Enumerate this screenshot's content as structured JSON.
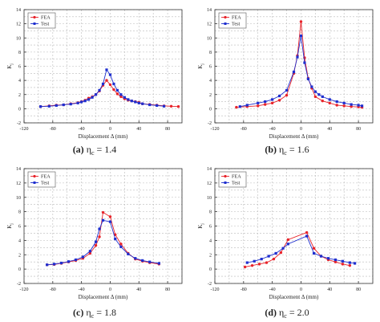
{
  "figure": {
    "panels": [
      {
        "caption_letter": "(a)",
        "caption_text": "η",
        "caption_sub": "c",
        "caption_value": "= 1.4"
      },
      {
        "caption_letter": "(b)",
        "caption_text": "η",
        "caption_sub": "c",
        "caption_value": "= 1.6"
      },
      {
        "caption_letter": "(c)",
        "caption_text": "η",
        "caption_sub": "c",
        "caption_value": "= 1.8"
      },
      {
        "caption_letter": "(d)",
        "caption_text": "η",
        "caption_sub": "c",
        "caption_value": "= 2.0"
      }
    ]
  },
  "style": {
    "fea_color": "#e8232a",
    "test_color": "#1f2fcf",
    "grid_color": "#bbbbbb"
  },
  "chart_data": [
    {
      "type": "line",
      "xlabel": "Displacement Δ (mm)",
      "ylabel": "K",
      "xlim": [
        -120,
        100
      ],
      "ylim": [
        -2,
        14
      ],
      "xticks": [
        -120,
        -80,
        -40,
        0,
        40,
        80
      ],
      "yticks": [
        -2,
        0,
        2,
        4,
        6,
        8,
        10,
        12,
        14
      ],
      "grid": true,
      "legend_position": "top-left",
      "series": [
        {
          "name": "FEA",
          "marker": "circle",
          "x": [
            -97,
            -85,
            -75,
            -65,
            -55,
            -45,
            -40,
            -35,
            -30,
            -25,
            -20,
            -15,
            -10,
            -5,
            0,
            5,
            10,
            15,
            20,
            25,
            30,
            35,
            40,
            45,
            55,
            65,
            75,
            85,
            95
          ],
          "y": [
            0.3,
            0.4,
            0.5,
            0.55,
            0.7,
            0.85,
            1.0,
            1.2,
            1.5,
            1.7,
            2.0,
            2.5,
            3.3,
            4.0,
            3.4,
            2.7,
            2.1,
            1.7,
            1.4,
            1.2,
            1.1,
            1.0,
            0.9,
            0.7,
            0.6,
            0.5,
            0.4,
            0.35,
            0.3
          ]
        },
        {
          "name": "Test",
          "marker": "square",
          "x": [
            -97,
            -85,
            -75,
            -65,
            -55,
            -45,
            -40,
            -35,
            -30,
            -25,
            -20,
            -15,
            -10,
            -5,
            0,
            5,
            10,
            15,
            20,
            25,
            30,
            35,
            40,
            45,
            55,
            65,
            75
          ],
          "y": [
            0.3,
            0.35,
            0.45,
            0.55,
            0.65,
            0.8,
            0.95,
            1.1,
            1.3,
            1.6,
            2.0,
            2.6,
            3.5,
            5.5,
            4.8,
            3.5,
            2.6,
            2.0,
            1.6,
            1.3,
            1.1,
            0.95,
            0.8,
            0.7,
            0.55,
            0.45,
            0.35
          ]
        }
      ]
    },
    {
      "type": "line",
      "xlabel": "Displacement Δ (mm)",
      "ylabel": "K",
      "xlim": [
        -120,
        100
      ],
      "ylim": [
        -2,
        14
      ],
      "xticks": [
        -120,
        -80,
        -40,
        0,
        40,
        80
      ],
      "yticks": [
        -2,
        0,
        2,
        4,
        6,
        8,
        10,
        12,
        14
      ],
      "grid": true,
      "legend_position": "top-left",
      "series": [
        {
          "name": "FEA",
          "marker": "circle",
          "x": [
            -90,
            -75,
            -60,
            -50,
            -40,
            -30,
            -20,
            -10,
            -5,
            0,
            5,
            10,
            15,
            20,
            30,
            40,
            50,
            60,
            70,
            80,
            85
          ],
          "y": [
            0.2,
            0.3,
            0.4,
            0.6,
            0.8,
            1.2,
            1.9,
            5.0,
            7.5,
            12.3,
            7.2,
            4.3,
            2.9,
            1.7,
            1.1,
            0.8,
            0.5,
            0.4,
            0.3,
            0.25,
            0.2
          ]
        },
        {
          "name": "Test",
          "marker": "square",
          "x": [
            -85,
            -75,
            -60,
            -50,
            -40,
            -30,
            -20,
            -10,
            -5,
            0,
            5,
            10,
            15,
            20,
            25,
            30,
            40,
            50,
            60,
            70,
            80,
            85
          ],
          "y": [
            0.3,
            0.5,
            0.8,
            1.0,
            1.3,
            1.8,
            2.6,
            5.2,
            7.3,
            10.3,
            6.5,
            4.2,
            3.1,
            2.4,
            2.0,
            1.7,
            1.3,
            1.0,
            0.8,
            0.6,
            0.5,
            0.4
          ]
        }
      ]
    },
    {
      "type": "line",
      "xlabel": "Displacement Δ (mm)",
      "ylabel": "K",
      "xlim": [
        -120,
        100
      ],
      "ylim": [
        -2,
        14
      ],
      "xticks": [
        -120,
        -80,
        -40,
        0,
        40,
        80
      ],
      "yticks": [
        -2,
        0,
        2,
        4,
        6,
        8,
        10,
        12,
        14
      ],
      "grid": true,
      "legend_position": "top-left",
      "series": [
        {
          "name": "FEA",
          "marker": "circle",
          "x": [
            -88,
            -78,
            -68,
            -58,
            -48,
            -38,
            -28,
            -20,
            -15,
            -10,
            0,
            7,
            15,
            25,
            35,
            45,
            55,
            68
          ],
          "y": [
            0.6,
            0.65,
            0.8,
            1.0,
            1.2,
            1.5,
            2.2,
            3.3,
            4.5,
            7.9,
            7.3,
            4.8,
            3.5,
            2.2,
            1.4,
            1.1,
            0.9,
            0.7
          ]
        },
        {
          "name": "Test",
          "marker": "square",
          "x": [
            -88,
            -78,
            -68,
            -58,
            -48,
            -38,
            -28,
            -20,
            -15,
            -10,
            0,
            7,
            15,
            25,
            35,
            45,
            55,
            68
          ],
          "y": [
            0.6,
            0.7,
            0.85,
            1.05,
            1.3,
            1.7,
            2.5,
            3.8,
            5.6,
            6.8,
            6.6,
            4.2,
            3.1,
            2.1,
            1.5,
            1.2,
            1.0,
            0.8
          ]
        }
      ]
    },
    {
      "type": "line",
      "xlabel": "Displacement Δ (mm)",
      "ylabel": "K",
      "xlim": [
        -120,
        100
      ],
      "ylim": [
        -2,
        14
      ],
      "xticks": [
        -120,
        -80,
        -40,
        0,
        40,
        80
      ],
      "yticks": [
        -2,
        0,
        2,
        4,
        6,
        8,
        10,
        12,
        14
      ],
      "grid": true,
      "legend_position": "top-left",
      "series": [
        {
          "name": "FEA",
          "marker": "circle",
          "x": [
            -78,
            -68,
            -58,
            -48,
            -38,
            -28,
            -18,
            8,
            18,
            28,
            38,
            48,
            58,
            68
          ],
          "y": [
            0.3,
            0.5,
            0.7,
            0.9,
            1.4,
            2.3,
            4.1,
            5.1,
            2.9,
            1.8,
            1.3,
            1.0,
            0.7,
            0.5
          ]
        },
        {
          "name": "Test",
          "marker": "square",
          "x": [
            -75,
            -65,
            -55,
            -45,
            -35,
            -25,
            -18,
            8,
            18,
            28,
            38,
            48,
            58,
            68,
            75
          ],
          "y": [
            0.9,
            1.1,
            1.4,
            1.8,
            2.2,
            2.9,
            3.5,
            4.6,
            2.2,
            1.8,
            1.5,
            1.3,
            1.1,
            0.9,
            0.8
          ]
        }
      ]
    }
  ]
}
